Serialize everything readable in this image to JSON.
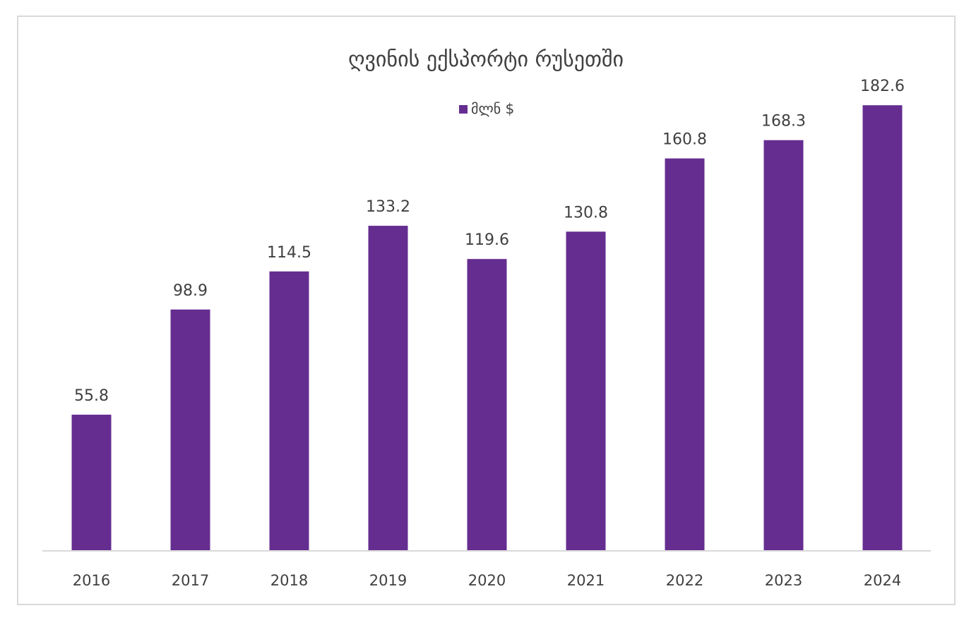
{
  "chart_data": {
    "type": "bar",
    "title": "ღვინის ექსპორტი რუსეთში",
    "categories": [
      "2016",
      "2017",
      "2018",
      "2019",
      "2020",
      "2021",
      "2022",
      "2023",
      "2024"
    ],
    "series": [
      {
        "name": "მლნ $",
        "values": [
          55.8,
          98.9,
          114.5,
          133.2,
          119.6,
          130.8,
          160.8,
          168.3,
          182.6
        ],
        "color": "#662d91"
      }
    ],
    "data_labels": [
      "55.8",
      "98.9",
      "114.5",
      "133.2",
      "119.6",
      "130.8",
      "160.8",
      "168.3",
      "182.6"
    ],
    "xlabel": "",
    "ylabel": "",
    "ylim": [
      0,
      190
    ],
    "grid": false,
    "legend_position": "top-center"
  },
  "colors": {
    "bar": "#662d91",
    "text": "#404040",
    "axis": "#d9d9d9",
    "frame": "#d9d9d9"
  }
}
